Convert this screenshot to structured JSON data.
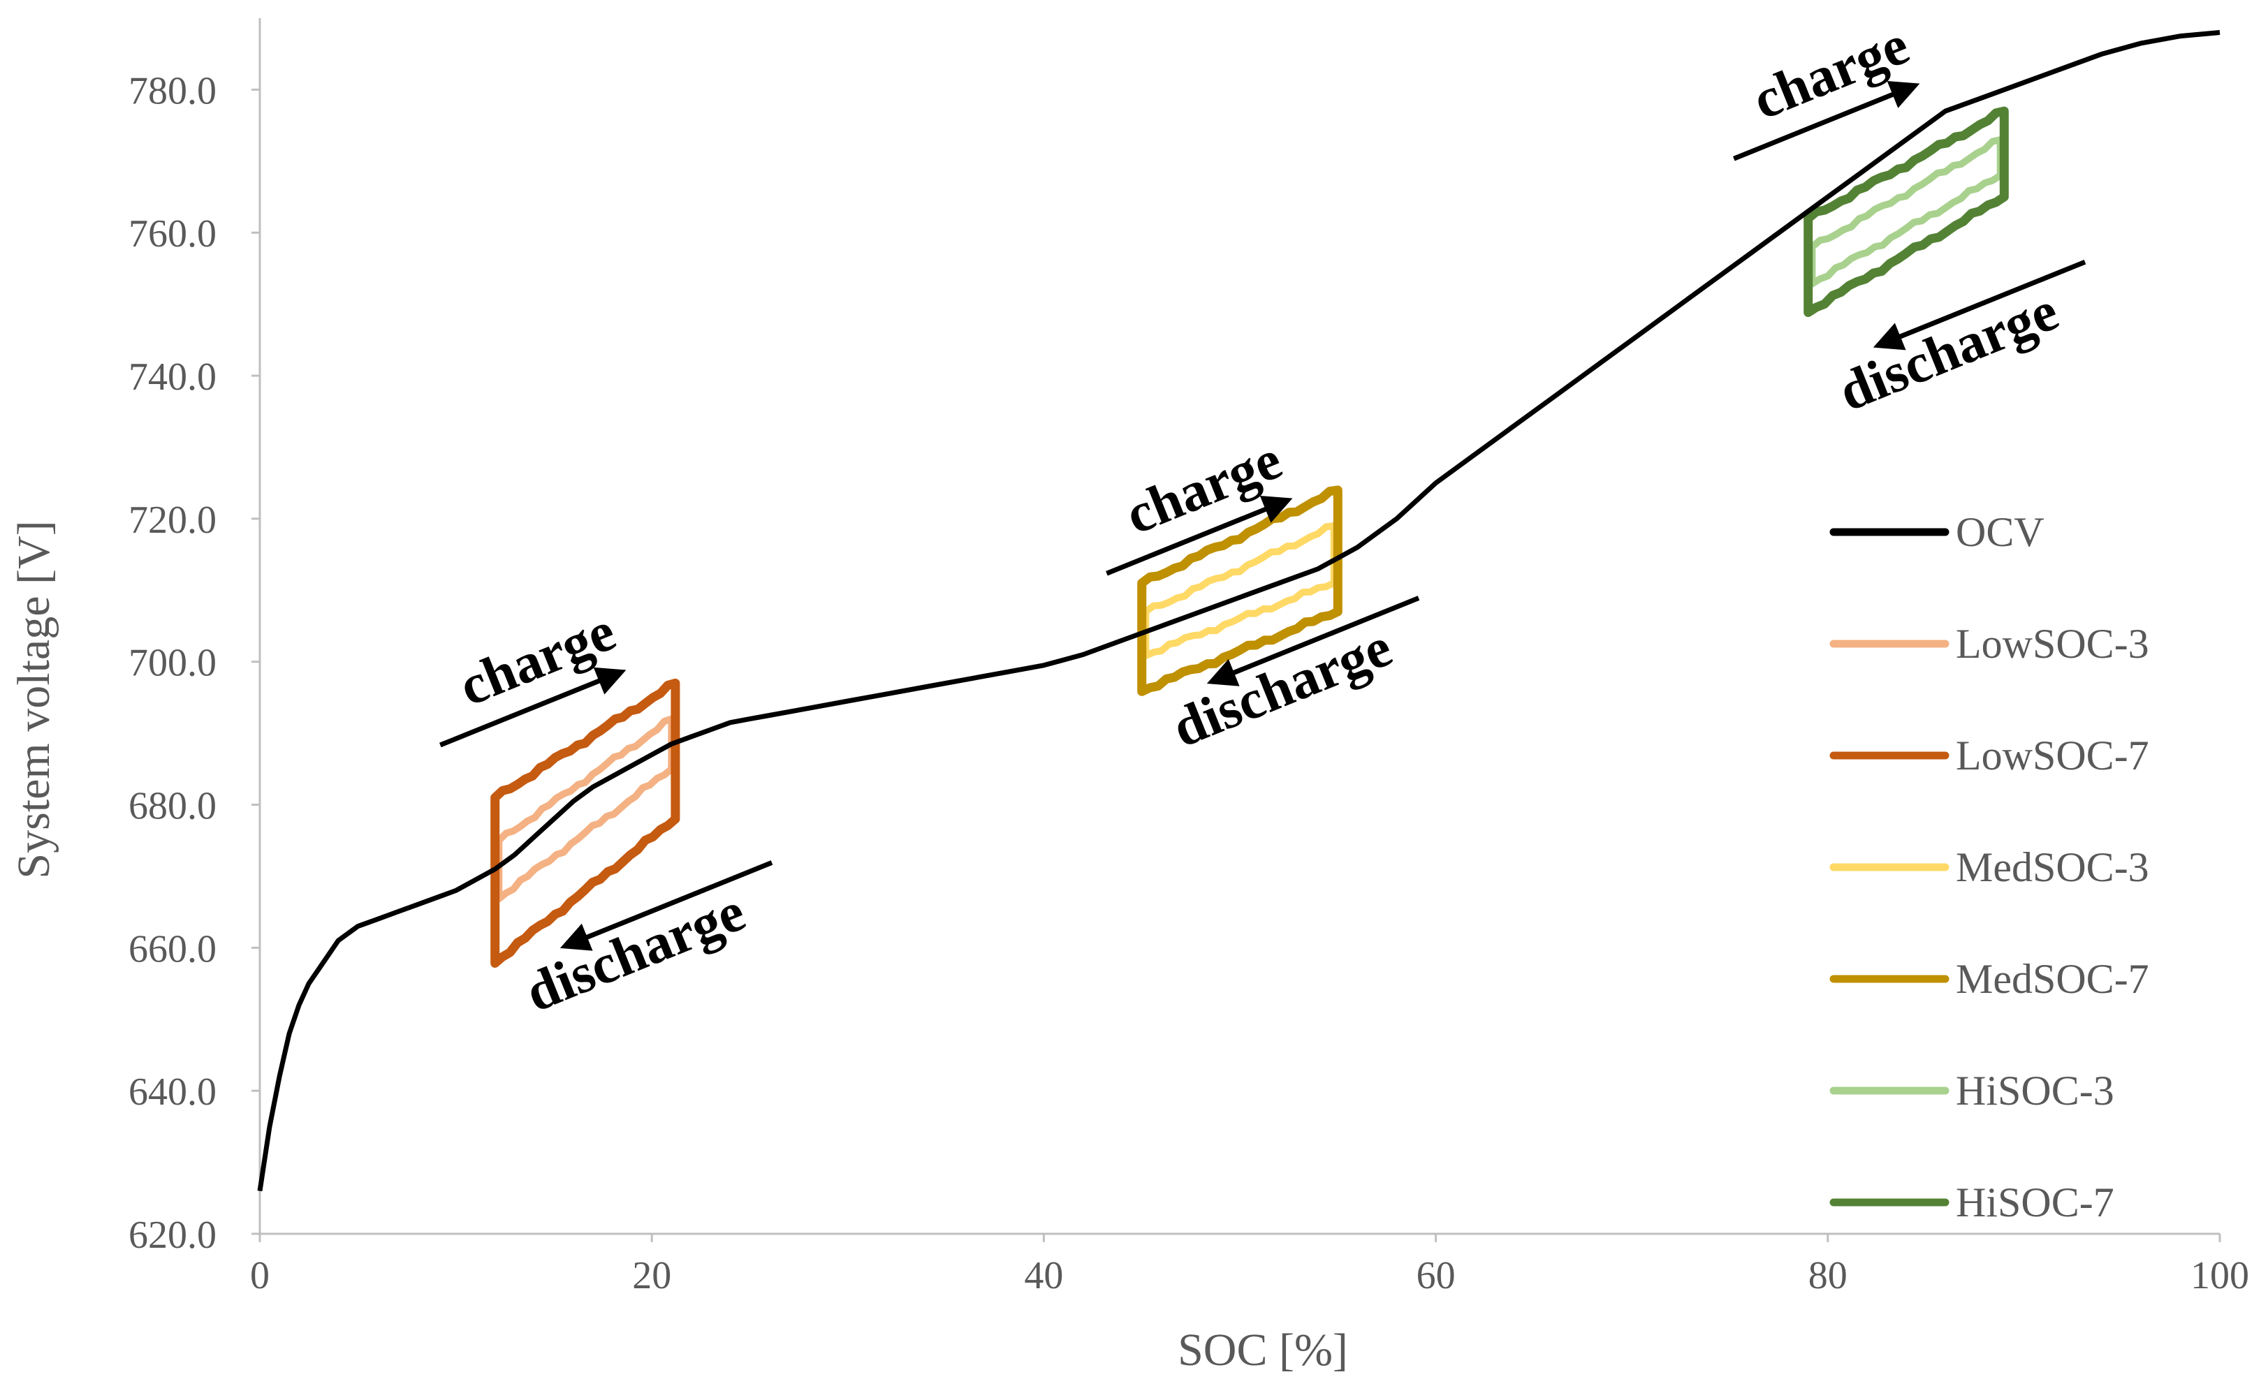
{
  "chart_data": {
    "type": "line",
    "title": "",
    "xlabel": "SOC [%]",
    "ylabel": "System voltage [V]",
    "xlim": [
      0,
      100
    ],
    "ylim": [
      620,
      790
    ],
    "xticks": [
      0,
      20,
      40,
      60,
      80,
      100
    ],
    "xtick_labels": [
      "0",
      "20",
      "40",
      "60",
      "80",
      "100"
    ],
    "yticks": [
      620,
      640,
      660,
      680,
      700,
      720,
      740,
      760,
      780
    ],
    "ytick_labels": [
      "620.0",
      "640.0",
      "660.0",
      "680.0",
      "700.0",
      "720.0",
      "740.0",
      "760.0",
      "780.0"
    ],
    "grid": false,
    "legend_position": "right",
    "series": [
      {
        "name": "OCV",
        "color": "#000000",
        "kind": "curve",
        "x": [
          0,
          0.5,
          1,
          1.5,
          2,
          2.5,
          3,
          3.5,
          4,
          5,
          6,
          7,
          8,
          9,
          10,
          11,
          12,
          13,
          14,
          15,
          16,
          17,
          18,
          19,
          20,
          21,
          22,
          23,
          24,
          25,
          26,
          28,
          30,
          32,
          34,
          36,
          38,
          40,
          42,
          44,
          46,
          48,
          50,
          52,
          54,
          56,
          58,
          60,
          62,
          64,
          66,
          68,
          70,
          72,
          74,
          76,
          78,
          80,
          82,
          84,
          86,
          88,
          90,
          92,
          94,
          96,
          98,
          100
        ],
        "values": [
          626,
          635,
          642,
          648,
          652,
          655,
          657,
          659,
          661,
          663,
          664,
          665,
          666,
          667,
          668,
          669.5,
          671,
          673,
          675.5,
          678,
          680.5,
          682.5,
          684,
          685.5,
          687,
          688.5,
          689.5,
          690.5,
          691.5,
          692,
          692.5,
          693.5,
          694.5,
          695.5,
          696.5,
          697.5,
          698.5,
          699.5,
          701,
          703,
          705,
          707,
          709,
          711,
          713,
          716,
          720,
          725,
          729,
          733,
          737,
          741,
          745,
          749,
          753,
          757,
          761,
          765,
          769,
          773,
          777,
          779,
          781,
          783,
          785,
          786.5,
          787.5,
          788
        ]
      },
      {
        "name": "LowSOC-3",
        "color": "#F4B183",
        "kind": "loop",
        "soc_range": [
          12.2,
          21
        ],
        "upper_start": 675,
        "upper_end": 692,
        "lower_start": 667,
        "lower_end": 685
      },
      {
        "name": "LowSOC-7",
        "color": "#C55A11",
        "kind": "loop",
        "soc_range": [
          12,
          21.2
        ],
        "upper_start": 681,
        "upper_end": 697,
        "lower_start": 658,
        "lower_end": 678
      },
      {
        "name": "MedSOC-3",
        "color": "#FFD966",
        "kind": "loop",
        "soc_range": [
          45.2,
          54.8
        ],
        "upper_start": 707,
        "upper_end": 719,
        "lower_start": 701,
        "lower_end": 711
      },
      {
        "name": "MedSOC-7",
        "color": "#BF9000",
        "kind": "loop",
        "soc_range": [
          45,
          55
        ],
        "upper_start": 711,
        "upper_end": 724,
        "lower_start": 696,
        "lower_end": 707
      },
      {
        "name": "HiSOC-3",
        "color": "#A9D18E",
        "kind": "loop",
        "soc_range": [
          79.2,
          88.8
        ],
        "upper_start": 758,
        "upper_end": 773,
        "lower_start": 753,
        "lower_end": 768
      },
      {
        "name": "HiSOC-7",
        "color": "#548235",
        "kind": "loop",
        "soc_range": [
          79,
          89
        ],
        "upper_start": 762,
        "upper_end": 777,
        "lower_start": 749,
        "lower_end": 765
      }
    ],
    "annotations": [
      {
        "text": "charge",
        "x": 14.5,
        "y": 698
      },
      {
        "text": "discharge",
        "x": 19.5,
        "y": 657
      },
      {
        "text": "charge",
        "x": 48.5,
        "y": 722
      },
      {
        "text": "discharge",
        "x": 52.5,
        "y": 694
      },
      {
        "text": "charge",
        "x": 80.5,
        "y": 780
      },
      {
        "text": "discharge",
        "x": 86.5,
        "y": 741
      }
    ]
  }
}
